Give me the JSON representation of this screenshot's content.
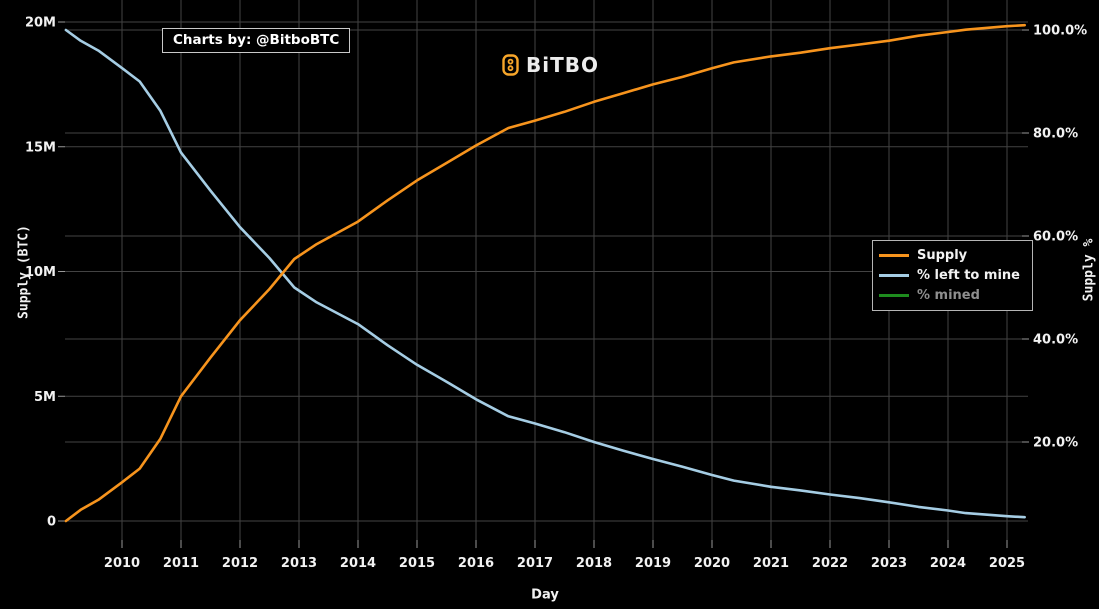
{
  "branding": {
    "credit": "Charts by: @BitboBTC",
    "logo_text": "BiTBO",
    "logo_icon": "bitcoin-icon"
  },
  "colors": {
    "background": "#000000",
    "supply": "#f7941d",
    "left_to_mine": "#a5cde4",
    "mined": "#1e8c1e",
    "grid": "#434343",
    "tick": "#999999",
    "text": "#f2f2f2",
    "muted_text": "#8f8f8f",
    "legend_border": "#b5b5b5"
  },
  "legend": {
    "items": [
      {
        "label": "Supply",
        "color": "#f7941d",
        "label_color": "#f2f2f2"
      },
      {
        "label": "% left to mine",
        "color": "#a5cde4",
        "label_color": "#f2f2f2"
      },
      {
        "label": "% mined",
        "color": "#1e8c1e",
        "label_color": "#8f8f8f"
      }
    ]
  },
  "chart_data": {
    "type": "line",
    "x_axis": {
      "title": "Day",
      "ticks": [
        {
          "label": "2010",
          "value": 2010
        },
        {
          "label": "2011",
          "value": 2011
        },
        {
          "label": "2012",
          "value": 2012
        },
        {
          "label": "2013",
          "value": 2013
        },
        {
          "label": "2014",
          "value": 2014
        },
        {
          "label": "2015",
          "value": 2015
        },
        {
          "label": "2016",
          "value": 2016
        },
        {
          "label": "2017",
          "value": 2017
        },
        {
          "label": "2018",
          "value": 2018
        },
        {
          "label": "2019",
          "value": 2019
        },
        {
          "label": "2020",
          "value": 2020
        },
        {
          "label": "2021",
          "value": 2021
        },
        {
          "label": "2022",
          "value": 2022
        },
        {
          "label": "2023",
          "value": 2023
        },
        {
          "label": "2024",
          "value": 2024
        },
        {
          "label": "2025",
          "value": 2025
        }
      ],
      "range": [
        2009.03,
        2025.35
      ]
    },
    "y_left": {
      "title": "Supply (BTC)",
      "ticks": [
        {
          "label": "0",
          "value": 0
        },
        {
          "label": "5M",
          "value": 5
        },
        {
          "label": "10M",
          "value": 10
        },
        {
          "label": "15M",
          "value": 15
        },
        {
          "label": "20M",
          "value": 20
        }
      ],
      "range": [
        0,
        20
      ]
    },
    "y_right": {
      "title": "Supply %",
      "ticks": [
        {
          "label": "20.0%",
          "value": 20
        },
        {
          "label": "40.0%",
          "value": 40
        },
        {
          "label": "60.0%",
          "value": 60
        },
        {
          "label": "80.0%",
          "value": 80
        },
        {
          "label": "100.0%",
          "value": 100
        }
      ],
      "range": [
        0,
        100
      ]
    },
    "series": [
      {
        "name": "Supply",
        "axis": "left",
        "color": "#f7941d",
        "visible": true,
        "points": [
          [
            2009.05,
            0
          ],
          [
            2009.3,
            0.45
          ],
          [
            2009.6,
            0.85
          ],
          [
            2010.0,
            1.55
          ],
          [
            2010.3,
            2.1
          ],
          [
            2010.65,
            3.3
          ],
          [
            2011.0,
            5.0
          ],
          [
            2011.5,
            6.55
          ],
          [
            2012.0,
            8.05
          ],
          [
            2012.5,
            9.3
          ],
          [
            2012.92,
            10.5
          ],
          [
            2013.3,
            11.1
          ],
          [
            2014.0,
            12.0
          ],
          [
            2014.5,
            12.85
          ],
          [
            2015.0,
            13.65
          ],
          [
            2015.5,
            14.35
          ],
          [
            2016.0,
            15.05
          ],
          [
            2016.55,
            15.75
          ],
          [
            2017.0,
            16.05
          ],
          [
            2017.5,
            16.4
          ],
          [
            2018.0,
            16.8
          ],
          [
            2018.5,
            17.15
          ],
          [
            2019.0,
            17.5
          ],
          [
            2019.5,
            17.8
          ],
          [
            2020.0,
            18.15
          ],
          [
            2020.37,
            18.38
          ],
          [
            2021.0,
            18.62
          ],
          [
            2021.5,
            18.77
          ],
          [
            2022.0,
            18.95
          ],
          [
            2022.5,
            19.1
          ],
          [
            2023.0,
            19.25
          ],
          [
            2023.5,
            19.45
          ],
          [
            2024.0,
            19.6
          ],
          [
            2024.3,
            19.69
          ],
          [
            2025.0,
            19.83
          ],
          [
            2025.3,
            19.87
          ]
        ]
      },
      {
        "name": "% left to mine",
        "axis": "right",
        "color": "#a5cde4",
        "visible": true,
        "points": [
          [
            2009.05,
            100
          ],
          [
            2009.3,
            97.9
          ],
          [
            2009.6,
            96.0
          ],
          [
            2010.0,
            92.6
          ],
          [
            2010.3,
            90.0
          ],
          [
            2010.65,
            84.3
          ],
          [
            2011.0,
            76.2
          ],
          [
            2011.5,
            68.8
          ],
          [
            2012.0,
            61.7
          ],
          [
            2012.5,
            55.7
          ],
          [
            2012.92,
            50.0
          ],
          [
            2013.3,
            47.1
          ],
          [
            2014.0,
            42.9
          ],
          [
            2014.5,
            38.8
          ],
          [
            2015.0,
            35.0
          ],
          [
            2015.5,
            31.7
          ],
          [
            2016.0,
            28.3
          ],
          [
            2016.55,
            25.0
          ],
          [
            2017.0,
            23.6
          ],
          [
            2017.5,
            21.9
          ],
          [
            2018.0,
            20.0
          ],
          [
            2018.5,
            18.3
          ],
          [
            2019.0,
            16.7
          ],
          [
            2019.5,
            15.2
          ],
          [
            2020.0,
            13.6
          ],
          [
            2020.37,
            12.5
          ],
          [
            2021.0,
            11.3
          ],
          [
            2021.5,
            10.6
          ],
          [
            2022.0,
            9.8
          ],
          [
            2022.5,
            9.1
          ],
          [
            2023.0,
            8.3
          ],
          [
            2023.5,
            7.4
          ],
          [
            2024.0,
            6.7
          ],
          [
            2024.3,
            6.2
          ],
          [
            2025.0,
            5.6
          ],
          [
            2025.3,
            5.4
          ]
        ]
      },
      {
        "name": "% mined",
        "axis": "right",
        "color": "#1e8c1e",
        "visible": false,
        "points": []
      }
    ]
  }
}
